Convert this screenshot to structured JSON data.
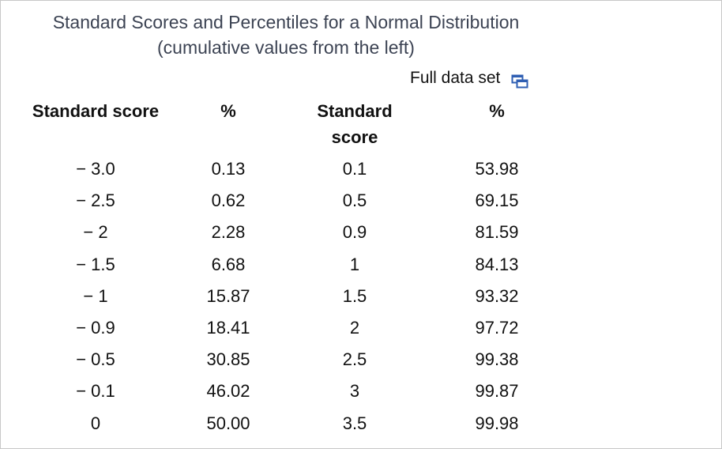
{
  "title_line1": "Standard Scores and Percentiles for a Normal Distribution",
  "title_line2": "(cumulative values from the left)",
  "full_data_set": {
    "label": "Full data set",
    "icon": "copy-window-icon"
  },
  "columns": {
    "left_score": "Standard score",
    "left_pct": "%",
    "right_score_line1": "Standard",
    "right_score_line2": "score",
    "right_pct": "%"
  },
  "rows": [
    {
      "ls": "− 3.0",
      "lp": "0.13",
      "rs": "0.1",
      "rp": "53.98"
    },
    {
      "ls": "− 2.5",
      "lp": "0.62",
      "rs": "0.5",
      "rp": "69.15"
    },
    {
      "ls": "− 2",
      "lp": "2.28",
      "rs": "0.9",
      "rp": "81.59"
    },
    {
      "ls": "− 1.5",
      "lp": "6.68",
      "rs": "1",
      "rp": "84.13"
    },
    {
      "ls": "− 1",
      "lp": "15.87",
      "rs": "1.5",
      "rp": "93.32"
    },
    {
      "ls": "− 0.9",
      "lp": "18.41",
      "rs": "2",
      "rp": "97.72"
    },
    {
      "ls": "− 0.5",
      "lp": "30.85",
      "rs": "2.5",
      "rp": "99.38"
    },
    {
      "ls": "− 0.1",
      "lp": "46.02",
      "rs": "3",
      "rp": "99.87"
    },
    {
      "ls": "0",
      "lp": "50.00",
      "rs": "3.5",
      "rp": "99.98"
    }
  ],
  "colors": {
    "title": "#3c4353",
    "icon": "#2f5fb3"
  }
}
